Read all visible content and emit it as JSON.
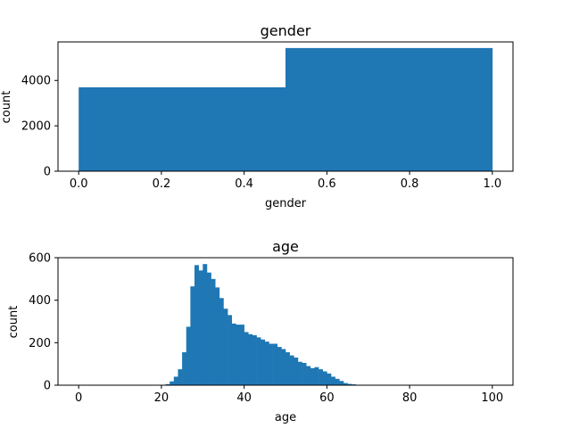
{
  "chart_data": [
    {
      "type": "bar",
      "title": "gender",
      "xlabel": "gender",
      "ylabel": "count",
      "xlim": [
        -0.05,
        1.05
      ],
      "ylim": [
        0,
        5700
      ],
      "xticks": [
        "0.0",
        "0.2",
        "0.4",
        "0.6",
        "0.8",
        "1.0"
      ],
      "xtick_values": [
        0.0,
        0.2,
        0.4,
        0.6,
        0.8,
        1.0
      ],
      "yticks": [
        "0",
        "2000",
        "4000"
      ],
      "ytick_values": [
        0,
        2000,
        4000
      ],
      "bins": [
        {
          "x0": 0.0,
          "x1": 0.5,
          "value": 3700
        },
        {
          "x0": 0.5,
          "x1": 1.0,
          "value": 5430
        }
      ],
      "color": "#1f77b4"
    },
    {
      "type": "bar",
      "title": "age",
      "xlabel": "age",
      "ylabel": "count",
      "xlim": [
        -5,
        105
      ],
      "ylim": [
        0,
        600
      ],
      "xticks": [
        "0",
        "20",
        "40",
        "60",
        "80",
        "100"
      ],
      "xtick_values": [
        0,
        20,
        40,
        60,
        80,
        100
      ],
      "yticks": [
        "0",
        "200",
        "400",
        "600"
      ],
      "ytick_values": [
        0,
        200,
        400,
        600
      ],
      "bin_start": 0,
      "bin_width": 1,
      "values": [
        0,
        0,
        0,
        0,
        0,
        0,
        0,
        0,
        0,
        0,
        0,
        0,
        0,
        0,
        0,
        0,
        0,
        0,
        0,
        0,
        2,
        5,
        18,
        40,
        75,
        155,
        275,
        465,
        565,
        540,
        570,
        530,
        500,
        460,
        410,
        360,
        330,
        290,
        285,
        285,
        250,
        240,
        235,
        225,
        215,
        205,
        195,
        195,
        180,
        170,
        155,
        140,
        130,
        110,
        105,
        90,
        80,
        85,
        75,
        65,
        55,
        40,
        30,
        20,
        10,
        6,
        4,
        2,
        1,
        0,
        0,
        0,
        0,
        0,
        0,
        0,
        0,
        0,
        0,
        0,
        0,
        0,
        0,
        0,
        0,
        0,
        0,
        0,
        0,
        0,
        0,
        0,
        0,
        0,
        0,
        0,
        0,
        0,
        0,
        0
      ],
      "color": "#1f77b4"
    }
  ]
}
